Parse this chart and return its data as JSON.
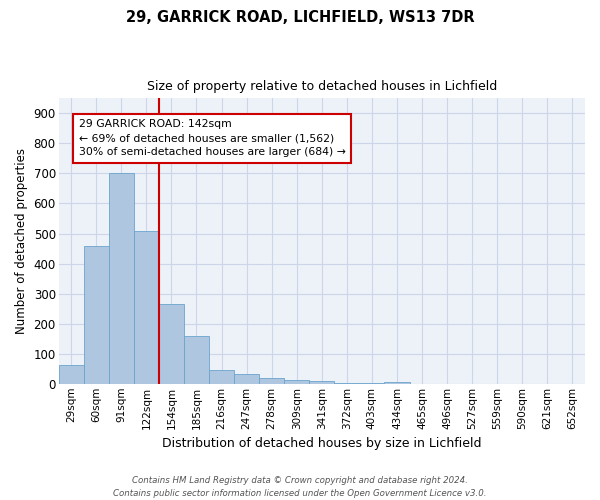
{
  "title1": "29, GARRICK ROAD, LICHFIELD, WS13 7DR",
  "title2": "Size of property relative to detached houses in Lichfield",
  "xlabel": "Distribution of detached houses by size in Lichfield",
  "ylabel": "Number of detached properties",
  "footnote": "Contains HM Land Registry data © Crown copyright and database right 2024.\nContains public sector information licensed under the Open Government Licence v3.0.",
  "categories": [
    "29sqm",
    "60sqm",
    "91sqm",
    "122sqm",
    "154sqm",
    "185sqm",
    "216sqm",
    "247sqm",
    "278sqm",
    "309sqm",
    "341sqm",
    "372sqm",
    "403sqm",
    "434sqm",
    "465sqm",
    "496sqm",
    "527sqm",
    "559sqm",
    "590sqm",
    "621sqm",
    "652sqm"
  ],
  "values": [
    62,
    459,
    700,
    510,
    265,
    158,
    46,
    34,
    18,
    14,
    8,
    4,
    2,
    7,
    0,
    0,
    0,
    0,
    0,
    0,
    0
  ],
  "bar_color": "#aec6e0",
  "bar_edge_color": "#6ba3cc",
  "vline_color": "#cc0000",
  "annotation_text": "29 GARRICK ROAD: 142sqm\n← 69% of detached houses are smaller (1,562)\n30% of semi-detached houses are larger (684) →",
  "annotation_box_color": "#ffffff",
  "annotation_box_edge": "#cc0000",
  "ylim": [
    0,
    950
  ],
  "yticks": [
    0,
    100,
    200,
    300,
    400,
    500,
    600,
    700,
    800,
    900
  ],
  "grid_color": "#cdd6e8",
  "bg_color": "#edf1f8"
}
